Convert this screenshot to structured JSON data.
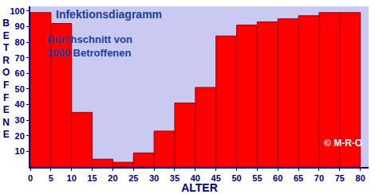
{
  "chart_data": {
    "type": "histogram",
    "title": "Infektionsdiagramm",
    "subtitle": "Durchschnitt von\n1000 Betroffenen",
    "annotations": [
      "© M-R-O"
    ],
    "x_label": "ALTER",
    "y_label": "BETROFFENE",
    "bins": [
      0,
      5,
      10,
      15,
      20,
      25,
      30,
      35,
      40,
      45,
      50,
      55,
      60,
      65,
      70,
      75,
      80
    ],
    "values": [
      99,
      92,
      35,
      5,
      3,
      9,
      23,
      41,
      51,
      84,
      91,
      93,
      95,
      97,
      99,
      99
    ],
    "color": "#ff0000",
    "xlim": [
      0,
      82
    ],
    "xticks": [
      0,
      5,
      10,
      15,
      20,
      25,
      30,
      35,
      40,
      45,
      50,
      55,
      60,
      65,
      70,
      75,
      80
    ],
    "ylim": [
      0,
      103
    ],
    "yticks": [
      10,
      20,
      30,
      40,
      50,
      60,
      70,
      80,
      90,
      100
    ],
    "grid": false
  }
}
